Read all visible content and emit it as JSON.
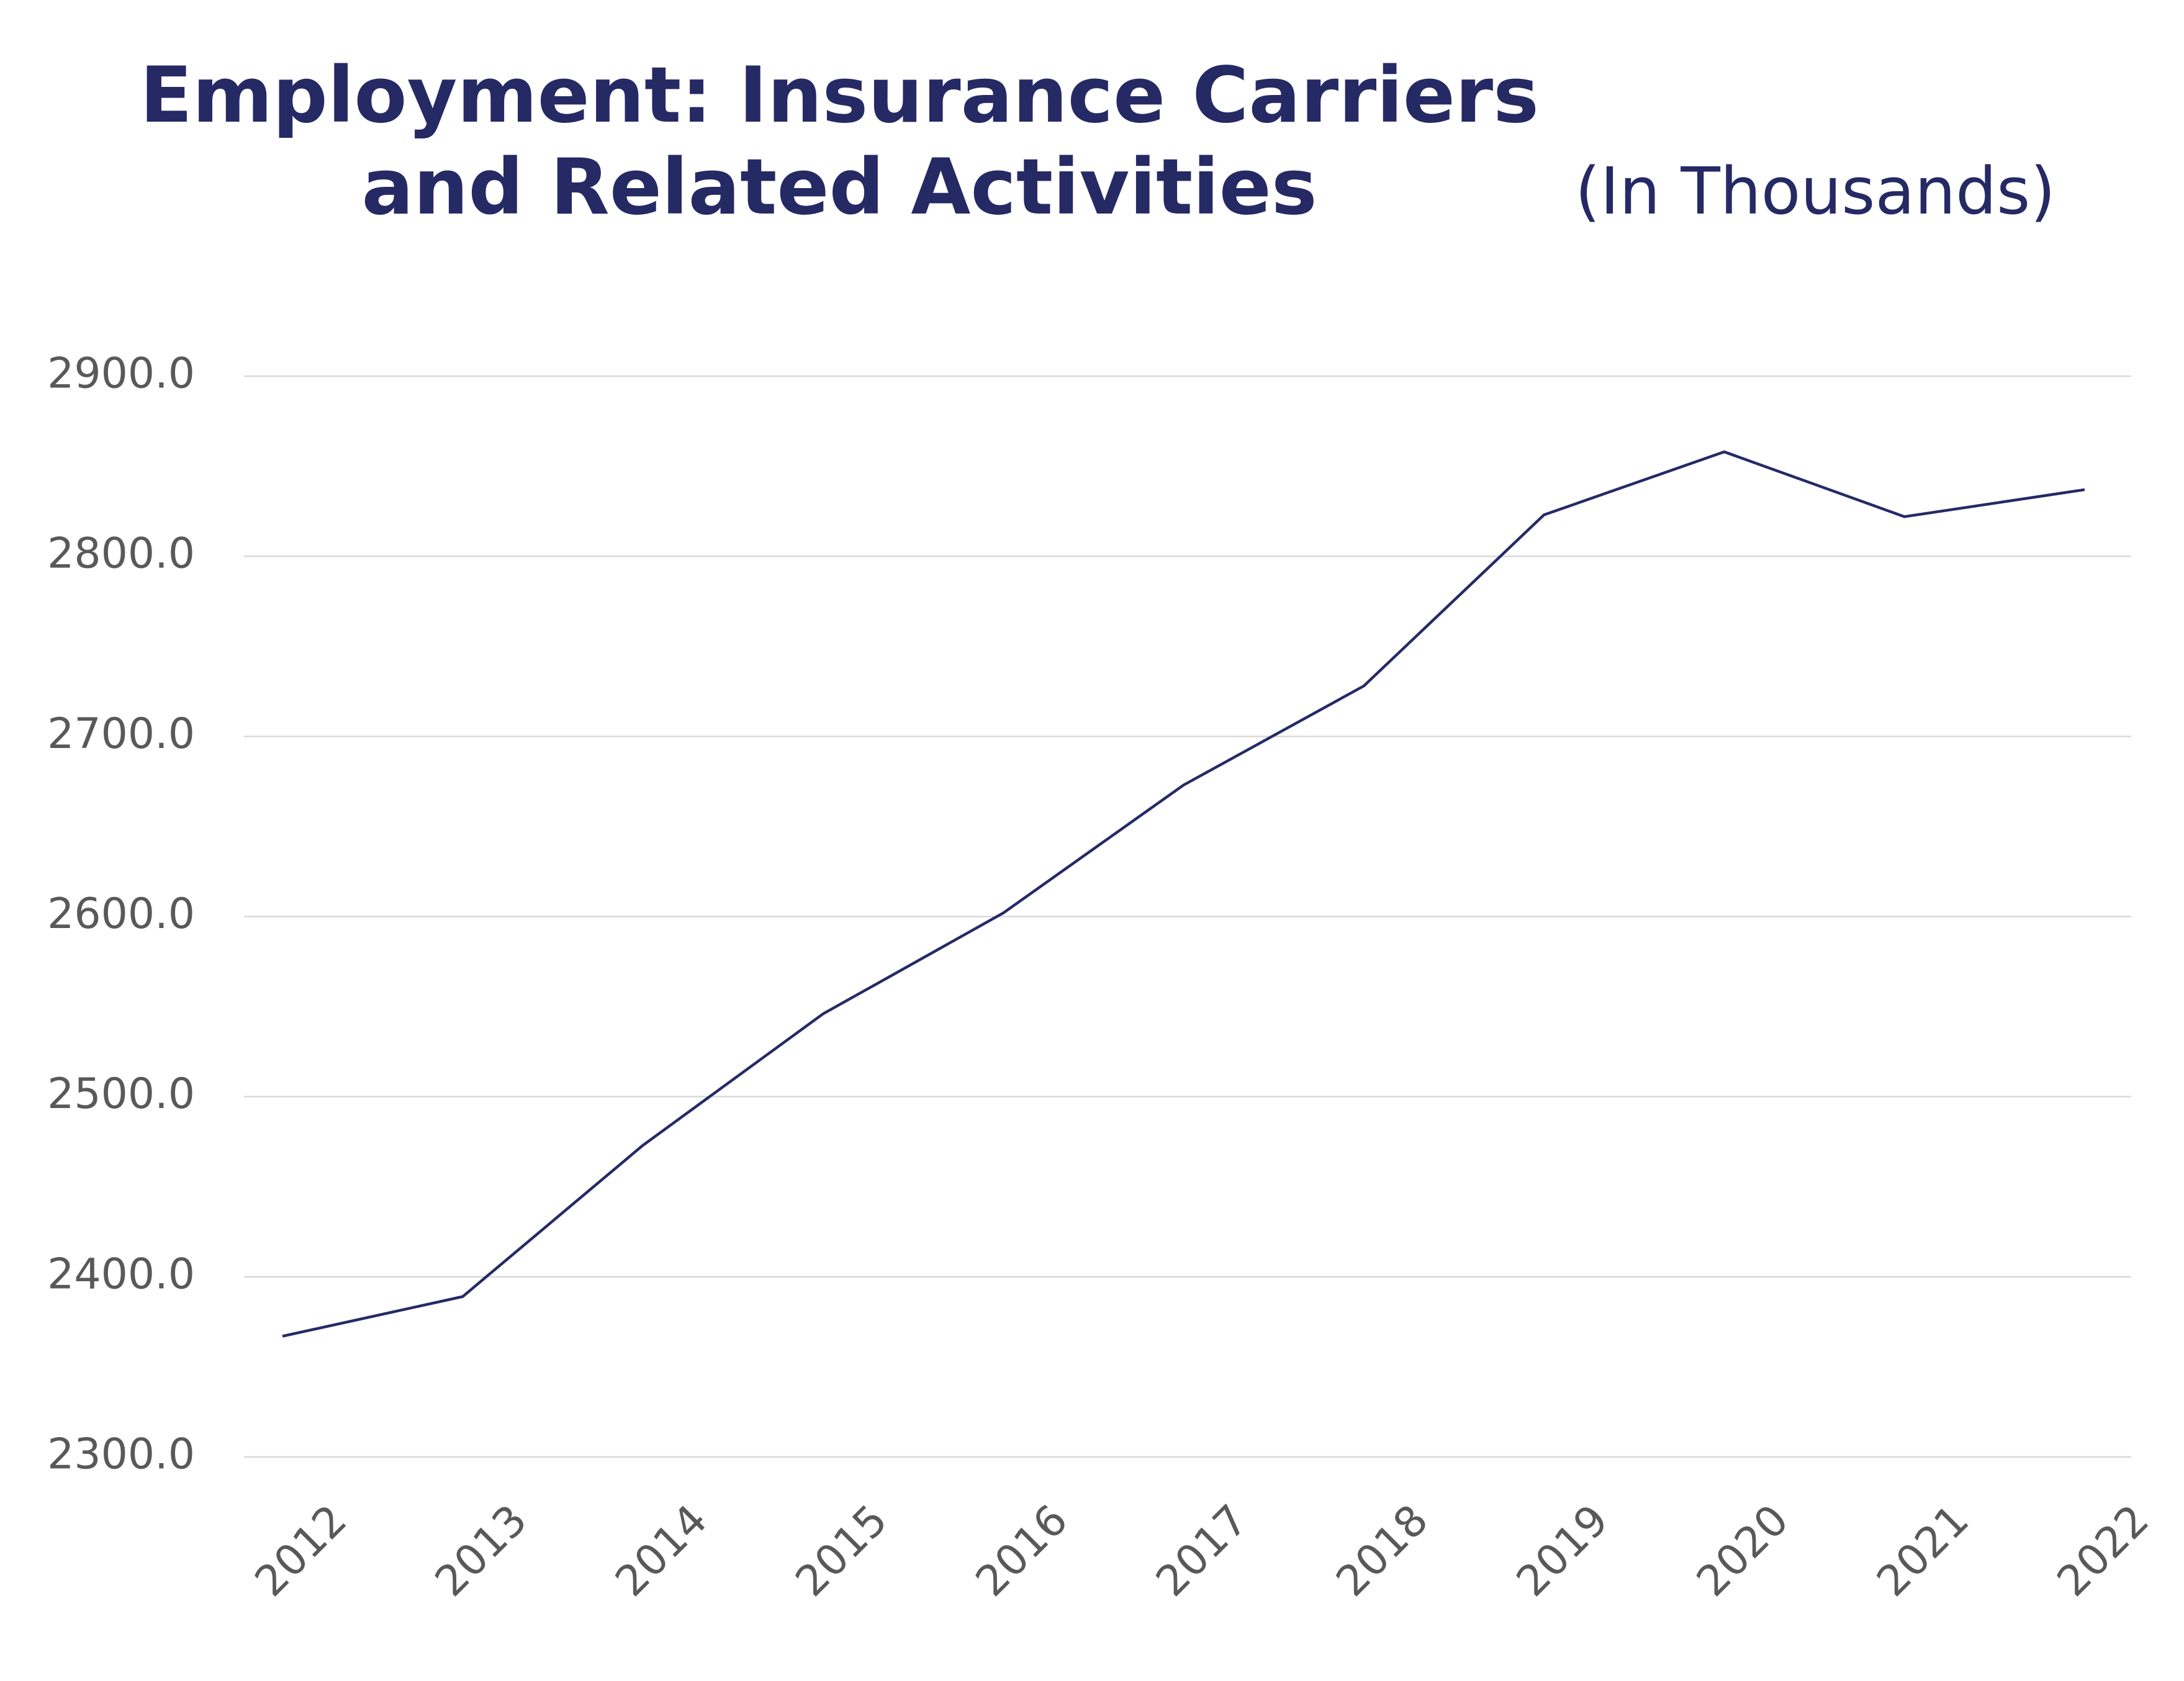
{
  "chart_data": {
    "type": "line",
    "title": "Employment: Insurance Carriers and Related Activities",
    "subtitle": "(In Thousands)",
    "categories": [
      "2012",
      "2013",
      "2014",
      "2015",
      "2016",
      "2017",
      "2018",
      "2019",
      "2020",
      "2021",
      "2022"
    ],
    "series": [
      {
        "name": "Employment",
        "color": "#262a66",
        "values": [
          2367,
          2389,
          2473,
          2546,
          2602,
          2673,
          2728,
          2823,
          2858,
          2822,
          2837
        ]
      }
    ],
    "ylim": [
      2300,
      2900
    ],
    "yticks": [
      {
        "value": 2300,
        "label": "2300.0"
      },
      {
        "value": 2400,
        "label": "2400.0"
      },
      {
        "value": 2500,
        "label": "2500.0"
      },
      {
        "value": 2600,
        "label": "2600.0"
      },
      {
        "value": 2700,
        "label": "2700.0"
      },
      {
        "value": 2800,
        "label": "2800.0"
      },
      {
        "value": 2900,
        "label": "2900.0"
      }
    ],
    "grid": true
  }
}
